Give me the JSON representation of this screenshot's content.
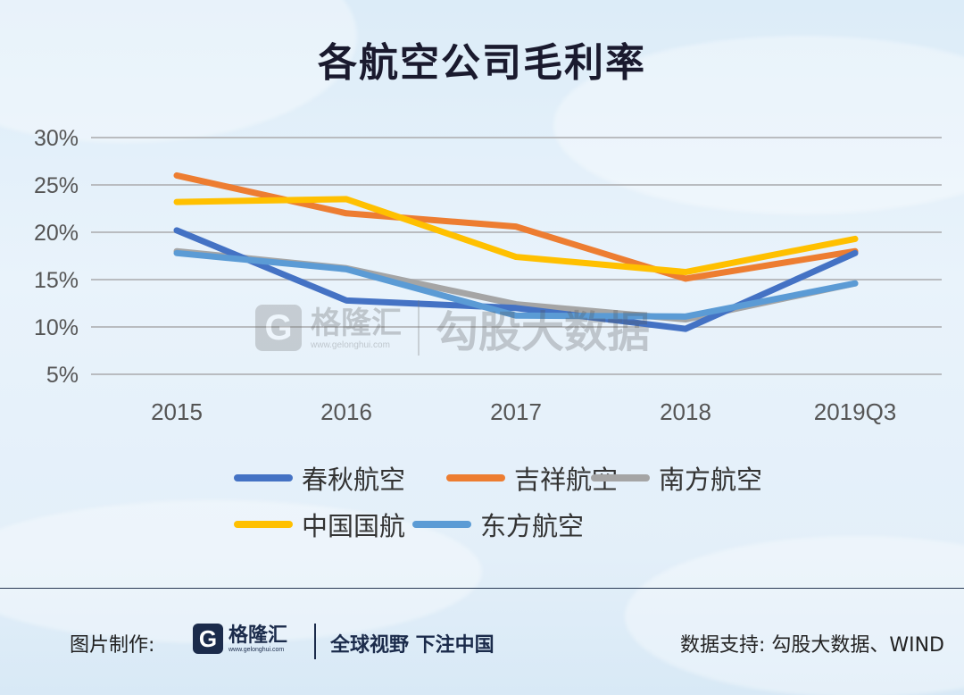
{
  "title": "各航空公司毛利率",
  "chart_data": {
    "type": "line",
    "title": "各航空公司毛利率",
    "categories": [
      "2015",
      "2016",
      "2017",
      "2018",
      "2019Q3"
    ],
    "y_tick_labels": [
      "5%",
      "10%",
      "15%",
      "20%",
      "25%",
      "30%"
    ],
    "ylim": [
      5,
      30
    ],
    "grid": true,
    "legend_placement": "bottom",
    "series": [
      {
        "name": "春秋航空",
        "color": "#4472c4",
        "values": [
          20.2,
          12.8,
          12.0,
          9.8,
          17.8
        ]
      },
      {
        "name": "吉祥航空",
        "color": "#ed7d31",
        "values": [
          26.0,
          22.0,
          20.6,
          15.1,
          18.0
        ]
      },
      {
        "name": "南方航空",
        "color": "#a5a5a5",
        "values": [
          18.0,
          16.2,
          12.4,
          10.8,
          14.6
        ]
      },
      {
        "name": "中国国航",
        "color": "#ffc000",
        "values": [
          23.2,
          23.5,
          17.4,
          15.8,
          19.3
        ]
      },
      {
        "name": "东方航空",
        "color": "#5b9bd5",
        "values": [
          17.8,
          16.1,
          11.2,
          11.1,
          14.6
        ]
      }
    ]
  },
  "watermark": {
    "logo_letter": "G",
    "brand": "格隆汇",
    "url": "www.gelonghui.com",
    "text": "勾股大数据"
  },
  "footer": {
    "credit": "图片制作:",
    "logo_letter": "G",
    "brand": "格隆汇",
    "url": "www.gelonghui.com",
    "slogan": "全球视野 下注中国",
    "source": "数据支持: 勾股大数据、WIND"
  }
}
